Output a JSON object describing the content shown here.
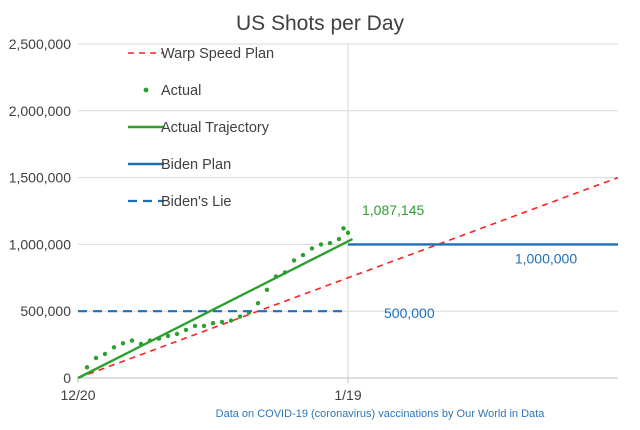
{
  "chart_data": {
    "type": "line",
    "title": "US Shots per Day",
    "xlabel": "",
    "ylabel": "",
    "x_unit": "days since 12/20",
    "xlim": [
      0,
      60
    ],
    "ylim": [
      0,
      2500000
    ],
    "y_ticks": [
      {
        "value": 0,
        "label": "0"
      },
      {
        "value": 500000,
        "label": "500,000"
      },
      {
        "value": 1000000,
        "label": "1,000,000"
      },
      {
        "value": 1500000,
        "label": "1,500,000"
      },
      {
        "value": 2000000,
        "label": "2,000,000"
      },
      {
        "value": 2500000,
        "label": "2,500,000"
      }
    ],
    "x_ticks": [
      {
        "value": 0,
        "label": "12/20"
      },
      {
        "value": 30,
        "label": "1/19"
      }
    ],
    "grid": "horizontal",
    "vertical_marker_x": 30,
    "legend_position": "top-left",
    "source_note": "Data on COVID-19 (coronavirus) vaccinations by Our World in Data",
    "series": [
      {
        "name": "Warp Speed Plan",
        "style": "dashed",
        "color": "#ff2020",
        "points": [
          [
            0,
            0
          ],
          [
            60,
            1500000
          ]
        ]
      },
      {
        "name": "Actual",
        "style": "dots",
        "color": "#2ca02c",
        "points": [
          [
            1,
            80000
          ],
          [
            2,
            150000
          ],
          [
            3,
            180000
          ],
          [
            4,
            230000
          ],
          [
            5,
            260000
          ],
          [
            6,
            280000
          ],
          [
            7,
            255000
          ],
          [
            8,
            280000
          ],
          [
            9,
            295000
          ],
          [
            10,
            315000
          ],
          [
            11,
            330000
          ],
          [
            12,
            360000
          ],
          [
            13,
            390000
          ],
          [
            14,
            390000
          ],
          [
            15,
            410000
          ],
          [
            16,
            420000
          ],
          [
            17,
            430000
          ],
          [
            18,
            460000
          ],
          [
            19,
            490000
          ],
          [
            20,
            560000
          ],
          [
            21,
            660000
          ],
          [
            22,
            760000
          ],
          [
            23,
            790000
          ],
          [
            24,
            880000
          ],
          [
            25,
            920000
          ],
          [
            26,
            970000
          ],
          [
            27,
            1000000
          ],
          [
            28,
            1010000
          ],
          [
            29,
            1040000
          ],
          [
            29.5,
            1120000
          ],
          [
            30,
            1087145
          ]
        ]
      },
      {
        "name": "Actual Trajectory",
        "style": "solid",
        "color": "#2ca02c",
        "points": [
          [
            0,
            0
          ],
          [
            30.5,
            1040000
          ]
        ]
      },
      {
        "name": "Biden Plan",
        "style": "solid",
        "color": "#1f6fb3",
        "points": [
          [
            30,
            1000000
          ],
          [
            60,
            1000000
          ]
        ]
      },
      {
        "name": "Biden's Lie",
        "style": "dashed",
        "color": "#1f6fb3",
        "points": [
          [
            0,
            500000
          ],
          [
            30,
            500000
          ]
        ]
      }
    ],
    "annotations": [
      {
        "text": "1,087,145",
        "x": 30,
        "y": 1087145,
        "color": "#2ca02c"
      },
      {
        "text": "1,000,000",
        "x": 52,
        "y": 1000000,
        "color": "#1f6fb3"
      },
      {
        "text": "500,000",
        "x": 34,
        "y": 500000,
        "color": "#1f6fb3"
      }
    ]
  }
}
